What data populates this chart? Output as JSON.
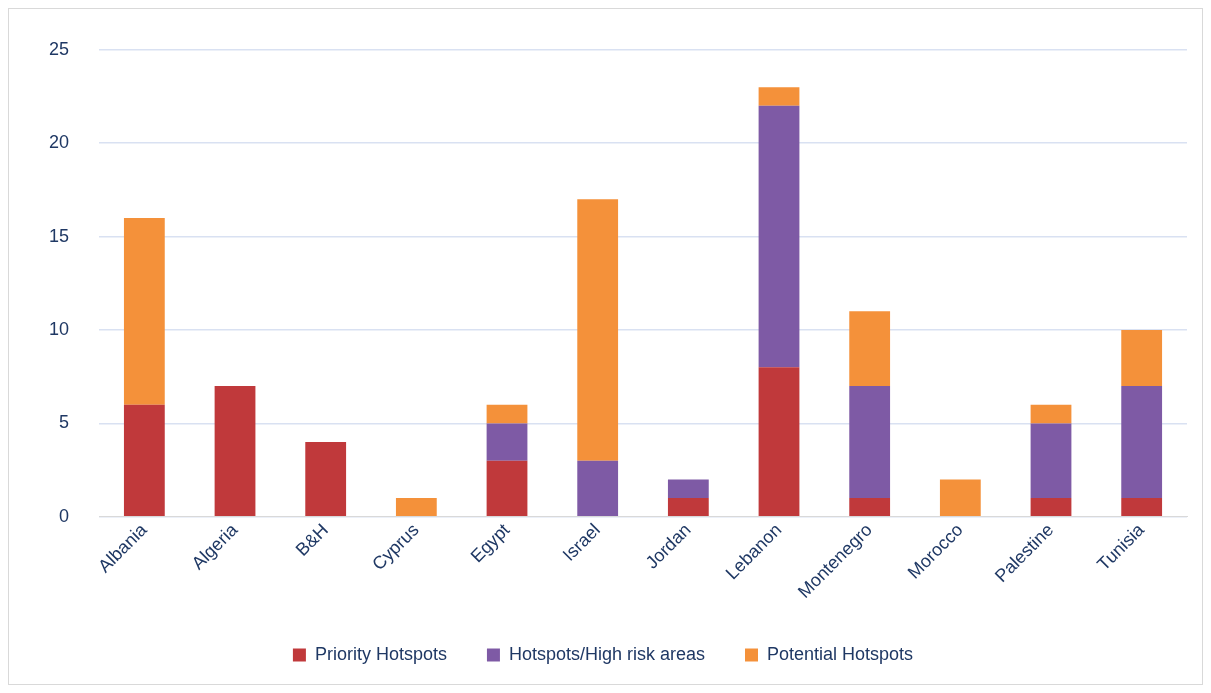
{
  "chart_data": {
    "type": "bar",
    "stacked": true,
    "categories": [
      "Albania",
      "Algeria",
      "B&H",
      "Cyprus",
      "Egypt",
      "Israel",
      "Jordan",
      "Lebanon",
      "Montenegro",
      "Morocco",
      "Palestine",
      "Tunisia"
    ],
    "series": [
      {
        "name": "Priority Hotspots",
        "color": "#c0393b",
        "values": [
          6,
          7,
          4,
          0,
          3,
          0,
          1,
          8,
          1,
          0,
          1,
          1
        ]
      },
      {
        "name": "Hotspots/High risk areas",
        "color": "#7e5aa5",
        "values": [
          0,
          0,
          0,
          0,
          2,
          3,
          1,
          14,
          6,
          0,
          4,
          6
        ]
      },
      {
        "name": "Potential Hotspots",
        "color": "#f4913a",
        "values": [
          10,
          0,
          0,
          1,
          1,
          14,
          0,
          1,
          4,
          2,
          1,
          3
        ]
      }
    ],
    "ylim": [
      0,
      25
    ],
    "yticks": [
      0,
      5,
      10,
      15,
      20,
      25
    ],
    "grid": "y",
    "legend": "bottom"
  }
}
